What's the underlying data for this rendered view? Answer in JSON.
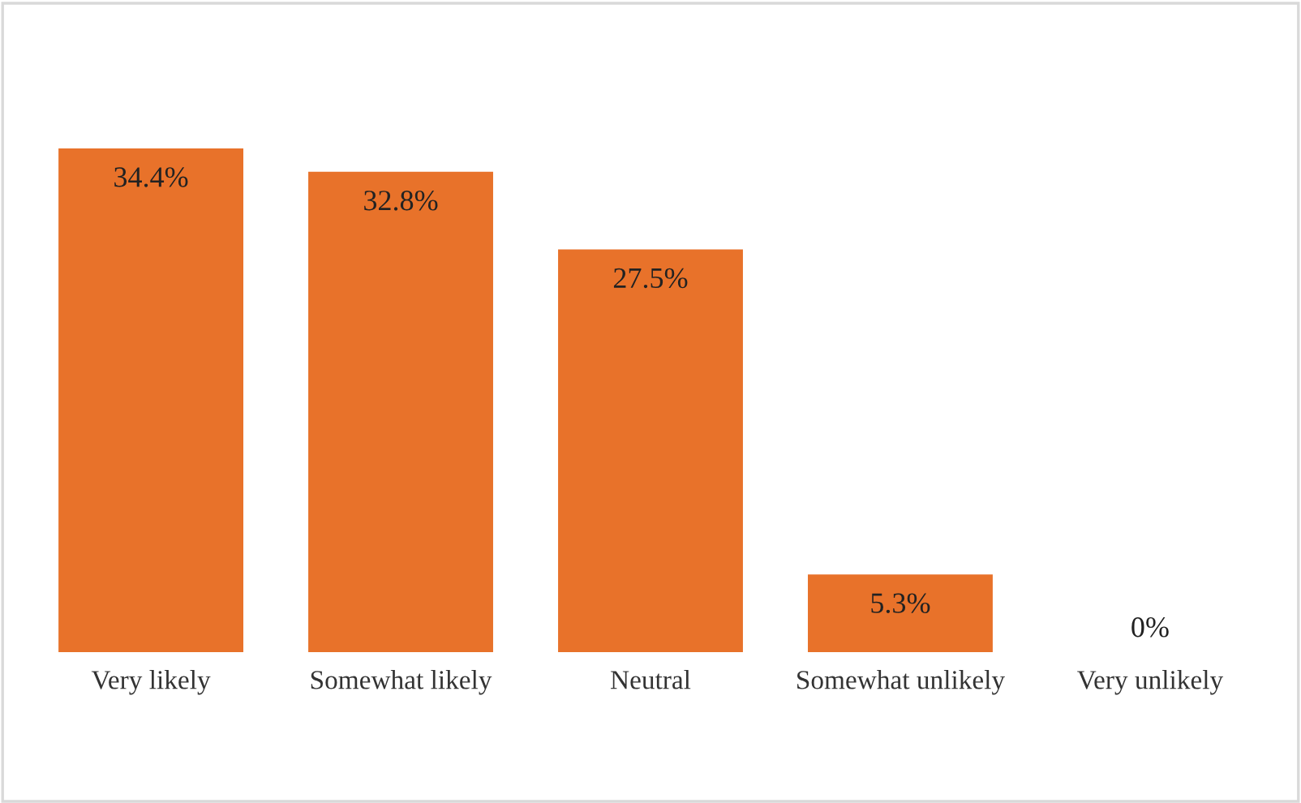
{
  "chart_data": {
    "type": "bar",
    "categories": [
      "Very likely",
      "Somewhat likely",
      "Neutral",
      "Somewhat unlikely",
      "Very unlikely"
    ],
    "values": [
      34.4,
      32.8,
      27.5,
      5.3,
      0
    ],
    "value_labels": [
      "34.4%",
      "32.8%",
      "27.5%",
      "5.3%",
      "0%"
    ],
    "color": "#e8722a",
    "grid": false,
    "legend": false
  }
}
